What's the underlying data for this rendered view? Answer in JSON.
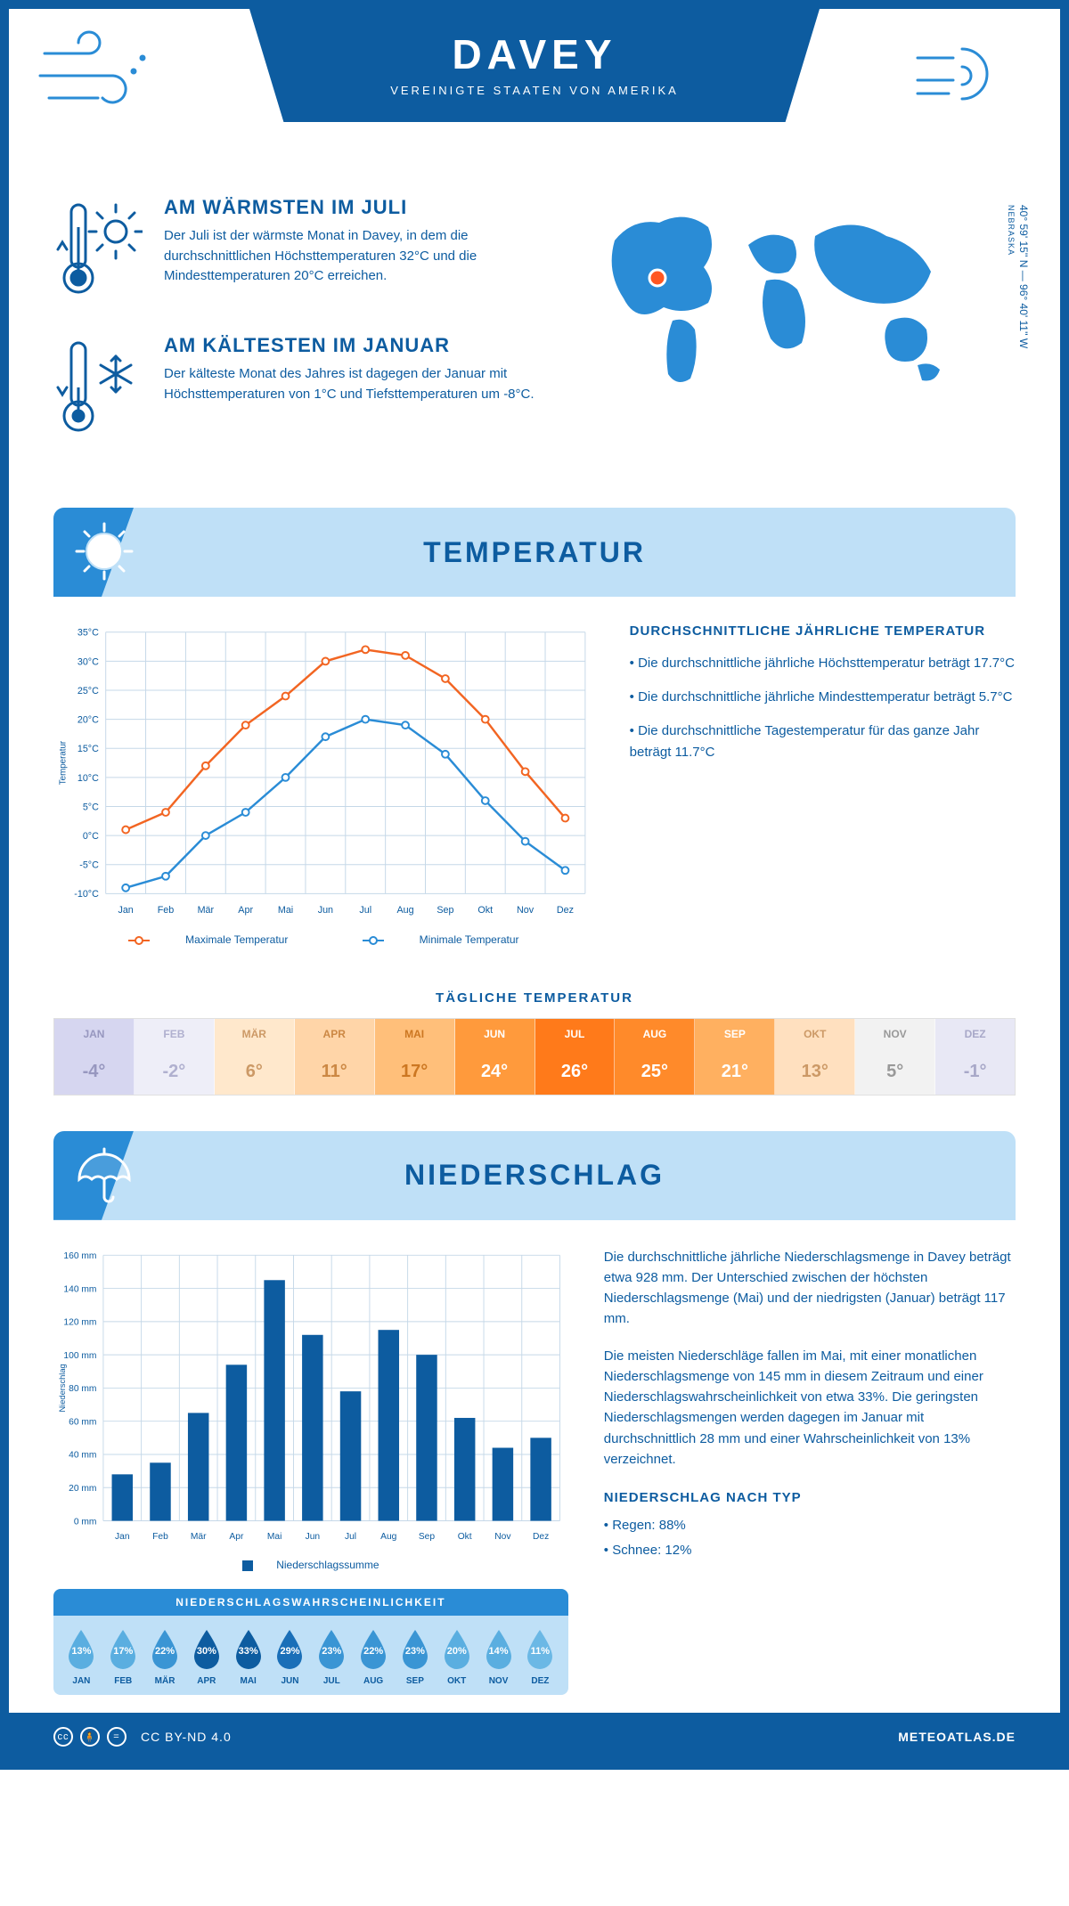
{
  "header": {
    "title": "DAVEY",
    "subtitle": "VEREINIGTE STAATEN VON AMERIKA"
  },
  "intro": {
    "warm": {
      "title": "AM WÄRMSTEN IM JULI",
      "text": "Der Juli ist der wärmste Monat in Davey, in dem die durchschnittlichen Höchsttemperaturen 32°C und die Mindesttemperaturen 20°C erreichen."
    },
    "cold": {
      "title": "AM KÄLTESTEN IM JANUAR",
      "text": "Der kälteste Monat des Jahres ist dagegen der Januar mit Höchsttemperaturen von 1°C und Tiefsttemperaturen um -8°C."
    },
    "coords": "40° 59' 15'' N — 96° 40' 11'' W",
    "state": "NEBRASKA",
    "map_fill": "#2a8cd6",
    "marker_color": "#ff5722"
  },
  "months": [
    "Jan",
    "Feb",
    "Mär",
    "Apr",
    "Mai",
    "Jun",
    "Jul",
    "Aug",
    "Sep",
    "Okt",
    "Nov",
    "Dez"
  ],
  "months_upper": [
    "JAN",
    "FEB",
    "MÄR",
    "APR",
    "MAI",
    "JUN",
    "JUL",
    "AUG",
    "SEP",
    "OKT",
    "NOV",
    "DEZ"
  ],
  "temp_section": {
    "title": "TEMPERATUR",
    "chart": {
      "type": "line",
      "ylabel": "Temperatur",
      "ylim": [
        -10,
        35
      ],
      "ytick_step": 5,
      "yticks": [
        "-10°C",
        "-5°C",
        "0°C",
        "5°C",
        "10°C",
        "15°C",
        "20°C",
        "25°C",
        "30°C",
        "35°C"
      ],
      "max_series": [
        1,
        4,
        12,
        19,
        24,
        30,
        32,
        31,
        27,
        20,
        11,
        3
      ],
      "min_series": [
        -9,
        -7,
        0,
        4,
        10,
        17,
        20,
        19,
        14,
        6,
        -1,
        -6
      ],
      "max_color": "#f26522",
      "min_color": "#2a8cd6",
      "grid_color": "#c5d8e8",
      "background": "#ffffff"
    },
    "legend_max": "Maximale Temperatur",
    "legend_min": "Minimale Temperatur",
    "side": {
      "heading": "DURCHSCHNITTLICHE JÄHRLICHE TEMPERATUR",
      "b1": "• Die durchschnittliche jährliche Höchsttemperatur beträgt 17.7°C",
      "b2": "• Die durchschnittliche jährliche Mindesttemperatur beträgt 5.7°C",
      "b3": "• Die durchschnittliche Tagestemperatur für das ganze Jahr beträgt 11.7°C"
    },
    "daily_title": "TÄGLICHE TEMPERATUR",
    "daily": {
      "values": [
        "-4°",
        "-2°",
        "6°",
        "11°",
        "17°",
        "24°",
        "26°",
        "25°",
        "21°",
        "13°",
        "5°",
        "-1°"
      ],
      "bg_colors": [
        "#d6d6f0",
        "#eeeef8",
        "#ffe8cc",
        "#ffd5a8",
        "#ffbf7a",
        "#ff9a3c",
        "#ff7a1a",
        "#ff8a2a",
        "#ffb060",
        "#ffe0bf",
        "#f2f2f2",
        "#e8e8f5"
      ],
      "text_colors": [
        "#9797bf",
        "#b0b0cf",
        "#cc9966",
        "#cc8844",
        "#cc7722",
        "#ffffff",
        "#ffffff",
        "#ffffff",
        "#ffffff",
        "#cc9966",
        "#999999",
        "#a8a8c8"
      ]
    }
  },
  "precip_section": {
    "title": "NIEDERSCHLAG",
    "chart": {
      "type": "bar",
      "ylabel": "Niederschlag",
      "ylim": [
        0,
        160
      ],
      "ytick_step": 20,
      "yticks": [
        "0 mm",
        "20 mm",
        "40 mm",
        "60 mm",
        "80 mm",
        "100 mm",
        "120 mm",
        "140 mm",
        "160 mm"
      ],
      "values": [
        28,
        35,
        65,
        94,
        145,
        112,
        78,
        115,
        100,
        62,
        44,
        50
      ],
      "bar_color": "#0d5ca0",
      "grid_color": "#c5d8e8",
      "legend": "Niederschlagssumme"
    },
    "text": {
      "p1": "Die durchschnittliche jährliche Niederschlagsmenge in Davey beträgt etwa 928 mm. Der Unterschied zwischen der höchsten Niederschlagsmenge (Mai) und der niedrigsten (Januar) beträgt 117 mm.",
      "p2": "Die meisten Niederschläge fallen im Mai, mit einer monatlichen Niederschlagsmenge von 145 mm in diesem Zeitraum und einer Niederschlagswahrscheinlichkeit von etwa 33%. Die geringsten Niederschlagsmengen werden dagegen im Januar mit durchschnittlich 28 mm und einer Wahrscheinlichkeit von 13% verzeichnet.",
      "type_heading": "NIEDERSCHLAG NACH TYP",
      "type_rain": "• Regen: 88%",
      "type_snow": "• Schnee: 12%"
    },
    "prob": {
      "title": "NIEDERSCHLAGSWAHRSCHEINLICHKEIT",
      "values": [
        "13%",
        "17%",
        "22%",
        "30%",
        "33%",
        "29%",
        "23%",
        "22%",
        "23%",
        "20%",
        "14%",
        "11%"
      ],
      "drop_colors": [
        "#5aaee0",
        "#5aaee0",
        "#3a95d4",
        "#0d5ca0",
        "#0d5ca0",
        "#1a6fb8",
        "#3a95d4",
        "#3a95d4",
        "#3a95d4",
        "#5aaee0",
        "#5aaee0",
        "#6bb8e5"
      ]
    }
  },
  "footer": {
    "license": "CC BY-ND 4.0",
    "site": "METEOATLAS.DE"
  },
  "colors": {
    "primary": "#0d5ca0",
    "accent": "#2a8cd6",
    "light": "#bfe0f7"
  }
}
